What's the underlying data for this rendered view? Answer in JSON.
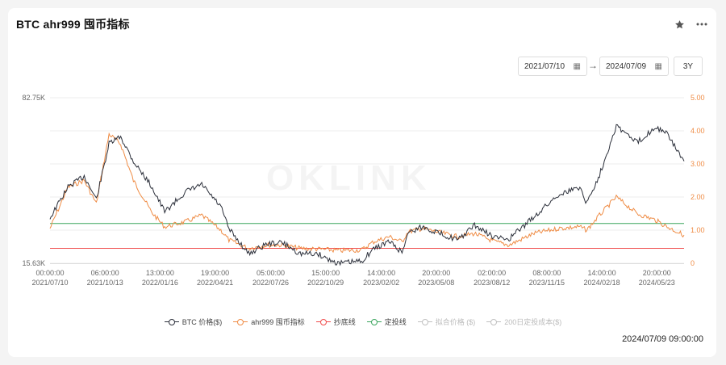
{
  "header": {
    "title": "BTC ahr999 囤币指标",
    "star_icon": "star-icon",
    "more_icon": "more-icon"
  },
  "controls": {
    "start_date": "2021/07/10",
    "end_date": "2024/07/09",
    "range_label": "3Y",
    "arrow": "→"
  },
  "watermark": "OKLINK",
  "timestamp": "2024/07/09 09:00:00",
  "legend": [
    {
      "label": "BTC 价格($)",
      "color": "#2b2f3a",
      "active": true
    },
    {
      "label": "ahr999 囤币指标",
      "color": "#ef8c45",
      "active": true
    },
    {
      "label": "抄底线",
      "color": "#ef4b4b",
      "active": true
    },
    {
      "label": "定投线",
      "color": "#3aa55d",
      "active": true
    },
    {
      "label": "拟合价格 ($)",
      "color": "#c0c0c0",
      "active": false
    },
    {
      "label": "200日定投成本($)",
      "color": "#c0c0c0",
      "active": false
    }
  ],
  "chart_data": {
    "type": "line",
    "x_ticks": [
      {
        "time": "00:00:00",
        "date": "2021/07/10"
      },
      {
        "time": "06:00:00",
        "date": "2021/10/13"
      },
      {
        "time": "13:00:00",
        "date": "2022/01/16"
      },
      {
        "time": "19:00:00",
        "date": "2022/04/21"
      },
      {
        "time": "05:00:00",
        "date": "2022/07/26"
      },
      {
        "time": "15:00:00",
        "date": "2022/10/29"
      },
      {
        "time": "14:00:00",
        "date": "2023/02/02"
      },
      {
        "time": "20:00:00",
        "date": "2023/05/08"
      },
      {
        "time": "02:00:00",
        "date": "2023/08/12"
      },
      {
        "time": "08:00:00",
        "date": "2023/11/15"
      },
      {
        "time": "14:00:00",
        "date": "2024/02/18"
      },
      {
        "time": "20:00:00",
        "date": "2024/05/23"
      }
    ],
    "left_axis": {
      "labels": [
        "82.75K",
        "15.63K"
      ],
      "min": 15630,
      "max": 82750
    },
    "right_axis": {
      "labels": [
        "5.00",
        "4.00",
        "3.00",
        "2.00",
        "1.00",
        "0"
      ],
      "min": 0,
      "max": 5
    },
    "series": [
      {
        "name": "BTC 价格($)",
        "axis": "left",
        "color": "#2b2f3a",
        "x": [
          "2021/07/10",
          "2021/08/10",
          "2021/09/07",
          "2021/09/28",
          "2021/10/20",
          "2021/11/09",
          "2021/12/01",
          "2022/01/01",
          "2022/01/24",
          "2022/03/01",
          "2022/03/29",
          "2022/05/01",
          "2022/05/15",
          "2022/06/18",
          "2022/07/20",
          "2022/08/15",
          "2022/09/15",
          "2022/10/15",
          "2022/11/09",
          "2022/11/21",
          "2022/12/30",
          "2023/01/20",
          "2023/02/16",
          "2023/03/10",
          "2023/03/20",
          "2023/04/14",
          "2023/06/15",
          "2023/07/13",
          "2023/08/17",
          "2023/09/11",
          "2023/10/24",
          "2023/12/05",
          "2024/01/11",
          "2024/01/23",
          "2024/02/14",
          "2024/03/14",
          "2024/04/19",
          "2024/05/21",
          "2024/06/10",
          "2024/07/09"
        ],
        "values": [
          34000,
          46500,
          51000,
          41500,
          64000,
          67000,
          57000,
          47000,
          36500,
          44500,
          47500,
          38500,
          29500,
          19500,
          23500,
          24000,
          19500,
          19500,
          16500,
          15600,
          16500,
          21500,
          24500,
          20000,
          28000,
          30400,
          25000,
          31000,
          26000,
          25500,
          34500,
          43500,
          46500,
          40000,
          51500,
          71500,
          64500,
          71000,
          68000,
          57000
        ]
      },
      {
        "name": "ahr999 囤币指标",
        "axis": "right",
        "color": "#ef8c45",
        "x": [
          "2021/07/10",
          "2021/08/10",
          "2021/09/07",
          "2021/09/28",
          "2021/10/20",
          "2021/11/09",
          "2021/12/01",
          "2022/01/01",
          "2022/01/24",
          "2022/03/01",
          "2022/03/29",
          "2022/05/01",
          "2022/05/15",
          "2022/06/18",
          "2022/07/20",
          "2022/08/15",
          "2022/09/15",
          "2022/10/15",
          "2022/11/09",
          "2022/11/21",
          "2022/12/30",
          "2023/01/20",
          "2023/02/16",
          "2023/03/10",
          "2023/03/20",
          "2023/04/14",
          "2023/06/15",
          "2023/07/13",
          "2023/08/17",
          "2023/09/11",
          "2023/10/24",
          "2023/12/05",
          "2024/01/11",
          "2024/01/23",
          "2024/02/14",
          "2024/03/14",
          "2024/04/19",
          "2024/05/21",
          "2024/06/10",
          "2024/07/09"
        ],
        "values": [
          1.05,
          2.3,
          2.5,
          1.8,
          3.9,
          3.6,
          2.5,
          1.55,
          1.1,
          1.25,
          1.45,
          1.0,
          0.7,
          0.45,
          0.55,
          0.55,
          0.45,
          0.43,
          0.4,
          0.38,
          0.4,
          0.65,
          0.8,
          0.65,
          0.95,
          1.05,
          0.8,
          0.9,
          0.65,
          0.55,
          0.9,
          1.05,
          1.1,
          1.0,
          1.45,
          2.0,
          1.5,
          1.3,
          1.1,
          0.85
        ]
      },
      {
        "name": "抄底线",
        "axis": "right",
        "color": "#ef4b4b",
        "values": [
          0.45
        ]
      },
      {
        "name": "定投线",
        "axis": "right",
        "color": "#3aa55d",
        "values": [
          1.2
        ]
      }
    ]
  }
}
